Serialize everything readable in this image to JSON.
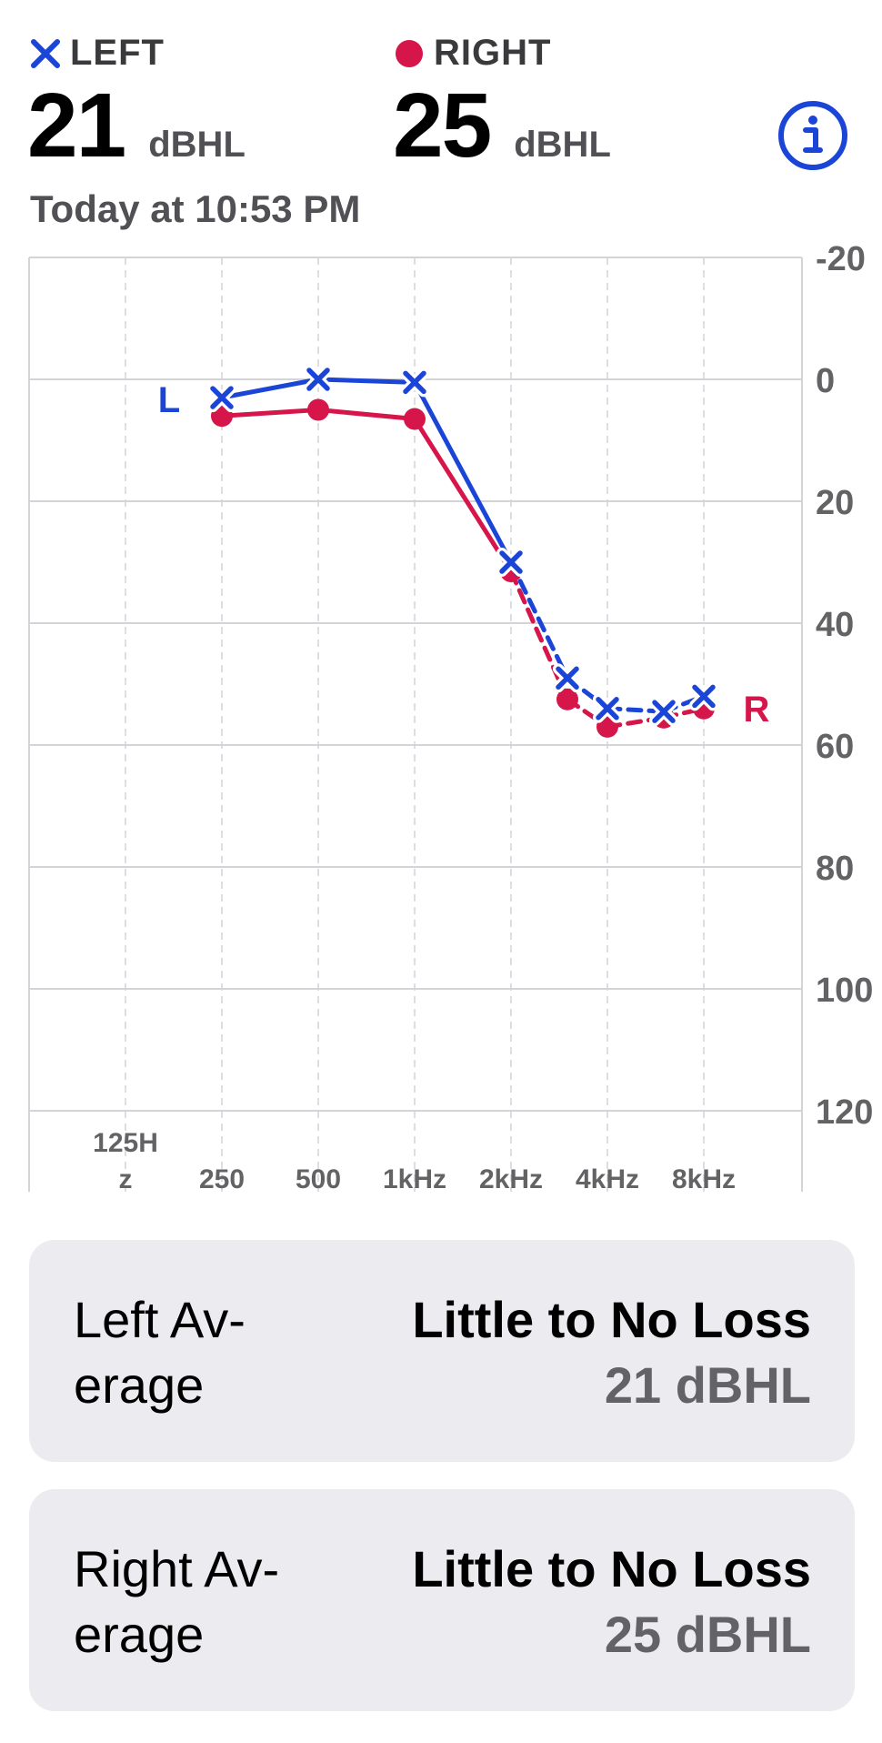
{
  "header": {
    "left": {
      "label": "LEFT",
      "value": "21",
      "unit": "dBHL",
      "symbol": "x-mark-icon"
    },
    "right": {
      "label": "RIGHT",
      "value": "25",
      "unit": "dBHL",
      "symbol": "dot-icon"
    },
    "timestamp": "Today at 10:53 PM",
    "info_icon": "info-circle-icon"
  },
  "colors": {
    "left": "#1a45d6",
    "right": "#d6154b",
    "grid": "#d4d4d8",
    "label": "#636366"
  },
  "chart_data": {
    "type": "line",
    "x": [
      "125Hz",
      "250",
      "500",
      "1kHz",
      "2kHz",
      "4kHz",
      "8kHz"
    ],
    "x_display": [
      "125H\nz",
      "250",
      "500",
      "1kHz",
      "2kHz",
      "4kHz",
      "8kHz"
    ],
    "x_values_hz": [
      125,
      250,
      500,
      1000,
      2000,
      4000,
      8000
    ],
    "y_ticks": [
      -20,
      0,
      20,
      40,
      60,
      80,
      100,
      120
    ],
    "ylim": [
      -20,
      120
    ],
    "y_inverted": true,
    "x_scale": "log",
    "grid": true,
    "series": [
      {
        "name": "L",
        "ear": "left",
        "marker": "x",
        "points": [
          {
            "hz": 250,
            "db": 3
          },
          {
            "hz": 500,
            "db": 0
          },
          {
            "hz": 1000,
            "db": 0.5
          },
          {
            "hz": 2000,
            "db": 30
          },
          {
            "hz": 3000,
            "db": 49
          },
          {
            "hz": 4000,
            "db": 54
          },
          {
            "hz": 6000,
            "db": 54.5
          },
          {
            "hz": 8000,
            "db": 52
          }
        ]
      },
      {
        "name": "R",
        "ear": "right",
        "marker": "dot",
        "points": [
          {
            "hz": 250,
            "db": 6
          },
          {
            "hz": 500,
            "db": 5
          },
          {
            "hz": 1000,
            "db": 6.5
          },
          {
            "hz": 2000,
            "db": 31.5
          },
          {
            "hz": 3000,
            "db": 52.5
          },
          {
            "hz": 4000,
            "db": 57
          },
          {
            "hz": 6000,
            "db": 55.5
          },
          {
            "hz": 8000,
            "db": 54
          }
        ]
      }
    ]
  },
  "cards": {
    "left": {
      "title": "Left Av-\nerage",
      "status": "Little to No Loss",
      "value": "21 dBHL"
    },
    "right": {
      "title": "Right Av-\nerage",
      "status": "Little to No Loss",
      "value": "25 dBHL"
    }
  }
}
